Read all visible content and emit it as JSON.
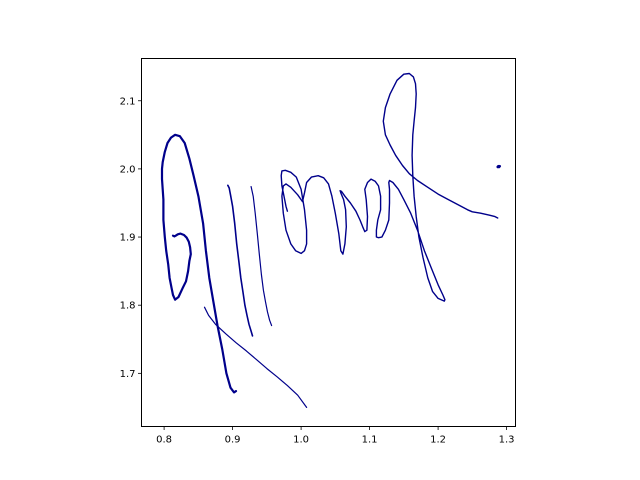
{
  "chart_data": {
    "type": "line",
    "title": "",
    "xlabel": "",
    "ylabel": "",
    "xlim": [
      0.767,
      1.313
    ],
    "ylim": [
      1.622,
      2.162
    ],
    "x_ticks": [
      0.8,
      0.9,
      1.0,
      1.1,
      1.2,
      1.3
    ],
    "x_tick_labels": [
      "0.8",
      "0.9",
      "1.0",
      "1.1",
      "1.2",
      "1.3"
    ],
    "y_ticks": [
      1.7,
      1.8,
      1.9,
      2.0,
      2.1
    ],
    "y_tick_labels": [
      "1.7",
      "1.8",
      "1.9",
      "2.0",
      "2.1"
    ],
    "grid": false,
    "legend": "none",
    "colors": {
      "stroke": "#00008b",
      "axes": "#000000",
      "background": "#ffffff"
    },
    "series": [
      {
        "x": [
          0.905,
          0.902,
          0.897,
          0.891,
          0.885,
          0.878,
          0.872,
          0.866,
          0.861,
          0.857,
          0.85,
          0.843,
          0.837,
          0.83,
          0.823,
          0.816,
          0.81,
          0.805,
          0.801,
          0.798,
          0.797,
          0.797,
          0.798,
          0.799,
          0.799,
          0.799,
          0.801,
          0.803,
          0.806,
          0.808,
          0.811,
          0.813,
          0.816,
          0.821,
          0.827,
          0.832,
          0.835,
          0.837,
          0.839,
          0.838,
          0.836,
          0.833,
          0.829,
          0.824,
          0.82,
          0.817,
          0.815,
          0.813
        ],
        "y": [
          1.674,
          1.672,
          1.679,
          1.7,
          1.735,
          1.77,
          1.805,
          1.84,
          1.88,
          1.92,
          1.96,
          1.99,
          2.015,
          2.038,
          2.048,
          2.05,
          2.046,
          2.038,
          2.025,
          2.01,
          2.0,
          1.985,
          1.97,
          1.955,
          1.94,
          1.925,
          1.9,
          1.88,
          1.86,
          1.84,
          1.825,
          1.815,
          1.808,
          1.812,
          1.825,
          1.835,
          1.85,
          1.865,
          1.875,
          1.885,
          1.893,
          1.899,
          1.903,
          1.905,
          1.904,
          1.902,
          1.901,
          1.902
        ],
        "width": 2.2
      },
      {
        "x": [
          0.893,
          0.895,
          0.897,
          0.9,
          0.903,
          0.906,
          0.909,
          0.912,
          0.915,
          0.918,
          0.921,
          0.924,
          0.927,
          0.929
        ],
        "y": [
          1.976,
          1.972,
          1.962,
          1.945,
          1.92,
          1.89,
          1.865,
          1.84,
          1.82,
          1.8,
          1.785,
          1.772,
          1.762,
          1.755
        ],
        "width": 1.6
      },
      {
        "x": [
          0.927,
          0.93,
          0.933,
          0.936,
          0.939,
          0.942,
          0.945,
          0.948,
          0.951,
          0.954,
          0.957
        ],
        "y": [
          1.974,
          1.96,
          1.935,
          1.905,
          1.875,
          1.845,
          1.822,
          1.805,
          1.79,
          1.778,
          1.77
        ],
        "width": 1.2
      },
      {
        "x": [
          0.859,
          0.865,
          0.875,
          0.89,
          0.905,
          0.92,
          0.935,
          0.95,
          0.965,
          0.98,
          0.995,
          1.008
        ],
        "y": [
          1.797,
          1.785,
          1.772,
          1.758,
          1.745,
          1.733,
          1.72,
          1.707,
          1.695,
          1.682,
          1.668,
          1.65
        ],
        "width": 1.2
      },
      {
        "x": [
          0.98,
          0.978,
          0.975,
          0.972,
          0.971,
          0.972,
          0.977,
          0.985,
          0.993,
          1.0,
          1.005,
          1.008,
          1.008,
          1.005,
          1.0,
          0.992,
          0.985,
          0.978,
          0.974,
          0.972,
          0.974,
          0.978,
          0.985,
          0.995,
          1.002,
          1.005,
          1.008,
          1.015,
          1.025,
          1.033,
          1.04,
          1.045,
          1.05,
          1.055,
          1.058,
          1.061,
          1.064,
          1.066,
          1.065,
          1.062,
          1.058,
          1.057,
          1.059,
          1.064,
          1.072,
          1.08,
          1.086,
          1.09,
          1.093,
          1.096,
          1.097,
          1.095,
          1.093,
          1.097,
          1.102,
          1.108,
          1.113,
          1.116,
          1.116,
          1.112,
          1.11,
          1.11,
          1.113,
          1.118,
          1.123,
          1.128,
          1.129,
          1.129,
          1.128,
          1.129,
          1.134,
          1.142,
          1.15,
          1.16,
          1.17,
          1.18,
          1.19,
          1.2,
          1.207,
          1.21,
          1.209,
          1.2,
          1.192,
          1.185,
          1.178,
          1.172,
          1.168,
          1.165,
          1.163,
          1.162,
          1.163,
          1.165,
          1.167,
          1.168,
          1.167,
          1.164,
          1.158,
          1.15,
          1.14,
          1.13,
          1.123,
          1.12,
          1.123,
          1.13,
          1.138,
          1.148,
          1.158,
          1.17,
          1.185,
          1.2,
          1.215,
          1.23,
          1.243,
          1.25,
          1.262,
          1.275,
          1.283,
          1.287
        ],
        "y": [
          1.938,
          1.945,
          1.96,
          1.975,
          1.99,
          1.997,
          1.998,
          1.995,
          1.988,
          1.97,
          1.94,
          1.91,
          1.89,
          1.88,
          1.876,
          1.88,
          1.89,
          1.91,
          1.935,
          1.96,
          1.975,
          1.978,
          1.973,
          1.962,
          1.952,
          1.965,
          1.98,
          1.988,
          1.99,
          1.987,
          1.978,
          1.96,
          1.935,
          1.905,
          1.88,
          1.875,
          1.89,
          1.915,
          1.94,
          1.955,
          1.965,
          1.968,
          1.967,
          1.96,
          1.95,
          1.938,
          1.925,
          1.915,
          1.908,
          1.91,
          1.93,
          1.955,
          1.97,
          1.98,
          1.985,
          1.982,
          1.975,
          1.96,
          1.94,
          1.925,
          1.91,
          1.9,
          1.899,
          1.9,
          1.91,
          1.925,
          1.95,
          1.97,
          1.98,
          1.983,
          1.98,
          1.97,
          1.955,
          1.935,
          1.91,
          1.88,
          1.855,
          1.83,
          1.815,
          1.808,
          1.806,
          1.81,
          1.82,
          1.84,
          1.87,
          1.9,
          1.93,
          1.96,
          1.99,
          2.02,
          2.05,
          2.07,
          2.09,
          2.11,
          2.125,
          2.135,
          2.14,
          2.139,
          2.13,
          2.11,
          2.09,
          2.07,
          2.05,
          2.035,
          2.02,
          2.005,
          1.993,
          1.983,
          1.973,
          1.963,
          1.955,
          1.947,
          1.94,
          1.937,
          1.935,
          1.932,
          1.93,
          1.928
        ],
        "width": 1.4
      },
      {
        "x": [
          1.287,
          1.288,
          1.289,
          1.29
        ],
        "y": [
          2.003,
          2.004,
          2.003,
          2.004
        ],
        "width": 2.6
      }
    ]
  }
}
